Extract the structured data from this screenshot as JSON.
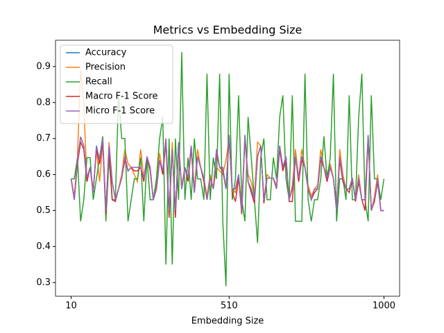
{
  "chart_data": {
    "type": "line",
    "title": "Metrics vs Embedding Size",
    "xlabel": "Embedding Size",
    "x": [
      10,
      20,
      30,
      40,
      50,
      60,
      70,
      80,
      90,
      100,
      110,
      120,
      130,
      140,
      150,
      160,
      170,
      180,
      190,
      200,
      210,
      220,
      230,
      240,
      250,
      260,
      270,
      280,
      290,
      300,
      310,
      320,
      330,
      340,
      350,
      360,
      370,
      380,
      390,
      400,
      410,
      420,
      430,
      440,
      450,
      460,
      470,
      480,
      490,
      500,
      510,
      520,
      530,
      540,
      550,
      560,
      570,
      580,
      590,
      600,
      610,
      620,
      630,
      640,
      650,
      660,
      670,
      680,
      690,
      700,
      710,
      720,
      730,
      740,
      750,
      760,
      770,
      780,
      790,
      800,
      810,
      820,
      830,
      840,
      850,
      860,
      870,
      880,
      890,
      900,
      910,
      920,
      930,
      940,
      950,
      960,
      970,
      980,
      990,
      1000
    ],
    "series": [
      {
        "name": "Accuracy",
        "color": "#1f77b4",
        "values": [
          0.588,
          0.53,
          0.64,
          0.705,
          0.68,
          0.59,
          0.62,
          0.55,
          0.68,
          0.64,
          0.7,
          0.5,
          0.68,
          0.58,
          0.53,
          0.56,
          0.59,
          0.65,
          0.61,
          0.62,
          0.62,
          0.62,
          0.62,
          0.59,
          0.65,
          0.62,
          0.53,
          0.56,
          0.64,
          0.61,
          0.7,
          0.5,
          0.67,
          0.5,
          0.69,
          0.56,
          0.62,
          0.59,
          0.68,
          0.55,
          0.65,
          0.62,
          0.59,
          0.53,
          0.59,
          0.56,
          0.67,
          0.62,
          0.62,
          0.56,
          0.71,
          0.56,
          0.56,
          0.6,
          0.5,
          0.71,
          0.58,
          0.56,
          0.53,
          0.65,
          0.68,
          0.53,
          0.59,
          0.59,
          0.59,
          0.56,
          0.68,
          0.62,
          0.65,
          0.53,
          0.56,
          0.65,
          0.59,
          0.65,
          0.62,
          0.56,
          0.53,
          0.56,
          0.56,
          0.65,
          0.62,
          0.59,
          0.62,
          0.59,
          0.5,
          0.65,
          0.59,
          0.56,
          0.56,
          0.59,
          0.53,
          0.59,
          0.53,
          0.53,
          0.71,
          0.5,
          0.53,
          0.59,
          0.5,
          0.5
        ]
      },
      {
        "name": "Precision",
        "color": "#ff7f0e",
        "values": [
          0.588,
          0.54,
          0.65,
          0.89,
          0.8,
          0.58,
          0.62,
          0.56,
          0.67,
          0.58,
          0.69,
          0.5,
          0.69,
          0.58,
          0.53,
          0.56,
          0.6,
          0.67,
          0.63,
          0.62,
          0.6,
          0.58,
          0.67,
          0.59,
          0.64,
          0.62,
          0.53,
          0.57,
          0.66,
          0.6,
          0.69,
          0.49,
          0.69,
          0.49,
          0.67,
          0.57,
          0.62,
          0.59,
          0.68,
          0.56,
          0.67,
          0.62,
          0.59,
          0.54,
          0.6,
          0.56,
          0.62,
          0.61,
          0.6,
          0.64,
          0.7,
          0.56,
          0.55,
          0.59,
          0.52,
          0.7,
          0.6,
          0.58,
          0.54,
          0.69,
          0.68,
          0.53,
          0.6,
          0.59,
          0.59,
          0.57,
          0.68,
          0.61,
          0.64,
          0.53,
          0.57,
          0.67,
          0.59,
          0.67,
          0.62,
          0.57,
          0.54,
          0.56,
          0.57,
          0.67,
          0.62,
          0.6,
          0.63,
          0.59,
          0.5,
          0.67,
          0.6,
          0.56,
          0.56,
          0.59,
          0.53,
          0.6,
          0.53,
          0.53,
          0.7,
          0.5,
          0.54,
          0.6,
          0.5,
          0.5
        ]
      },
      {
        "name": "Recall",
        "color": "#2ca02c",
        "values": [
          0.588,
          0.588,
          0.647,
          0.47,
          0.53,
          0.647,
          0.647,
          0.53,
          0.588,
          0.647,
          0.706,
          0.47,
          0.647,
          0.53,
          0.53,
          0.82,
          0.7,
          0.7,
          0.47,
          0.53,
          0.588,
          0.588,
          0.647,
          0.47,
          0.647,
          0.53,
          0.53,
          0.588,
          0.7,
          0.76,
          0.35,
          0.7,
          0.35,
          0.7,
          0.53,
          0.94,
          0.53,
          0.647,
          0.53,
          0.7,
          0.588,
          0.588,
          0.53,
          0.88,
          0.53,
          0.647,
          0.588,
          0.88,
          0.47,
          0.29,
          0.88,
          0.53,
          0.588,
          0.82,
          0.53,
          0.47,
          0.76,
          0.647,
          0.53,
          0.41,
          0.647,
          0.7,
          0.53,
          0.53,
          0.647,
          0.588,
          0.76,
          0.82,
          0.588,
          0.53,
          0.82,
          0.47,
          0.47,
          0.47,
          0.88,
          0.53,
          0.47,
          0.53,
          0.53,
          0.588,
          0.706,
          0.588,
          0.647,
          0.88,
          0.47,
          0.588,
          0.588,
          0.53,
          0.82,
          0.53,
          0.53,
          0.76,
          0.88,
          0.53,
          0.47,
          0.82,
          0.588,
          0.588,
          0.53,
          0.588
        ]
      },
      {
        "name": "Macro F-1 Score",
        "color": "#d62728",
        "values": [
          0.588,
          0.53,
          0.63,
          0.69,
          0.67,
          0.58,
          0.62,
          0.55,
          0.67,
          0.63,
          0.69,
          0.49,
          0.67,
          0.53,
          0.525,
          0.56,
          0.59,
          0.64,
          0.61,
          0.62,
          0.61,
          0.61,
          0.62,
          0.58,
          0.65,
          0.61,
          0.53,
          0.56,
          0.64,
          0.6,
          0.69,
          0.48,
          0.67,
          0.48,
          0.68,
          0.56,
          0.62,
          0.58,
          0.67,
          0.55,
          0.65,
          0.62,
          0.58,
          0.53,
          0.59,
          0.56,
          0.66,
          0.62,
          0.61,
          0.56,
          0.7,
          0.55,
          0.525,
          0.59,
          0.49,
          0.7,
          0.58,
          0.55,
          0.52,
          0.65,
          0.68,
          0.52,
          0.59,
          0.59,
          0.59,
          0.56,
          0.67,
          0.61,
          0.64,
          0.525,
          0.525,
          0.65,
          0.58,
          0.64,
          0.62,
          0.56,
          0.53,
          0.55,
          0.56,
          0.64,
          0.62,
          0.58,
          0.62,
          0.59,
          0.5,
          0.64,
          0.58,
          0.56,
          0.55,
          0.59,
          0.525,
          0.58,
          0.53,
          0.5,
          0.7,
          0.5,
          0.525,
          0.58,
          0.5,
          0.5
        ]
      },
      {
        "name": "Micro F-1 Score",
        "color": "#9467bd",
        "values": [
          0.588,
          0.53,
          0.64,
          0.705,
          0.68,
          0.59,
          0.62,
          0.55,
          0.68,
          0.64,
          0.7,
          0.5,
          0.68,
          0.58,
          0.53,
          0.56,
          0.59,
          0.65,
          0.61,
          0.62,
          0.62,
          0.62,
          0.62,
          0.59,
          0.65,
          0.62,
          0.53,
          0.56,
          0.64,
          0.61,
          0.7,
          0.5,
          0.67,
          0.5,
          0.69,
          0.56,
          0.62,
          0.59,
          0.68,
          0.55,
          0.65,
          0.62,
          0.59,
          0.53,
          0.59,
          0.56,
          0.67,
          0.62,
          0.62,
          0.56,
          0.71,
          0.56,
          0.56,
          0.6,
          0.5,
          0.71,
          0.58,
          0.56,
          0.53,
          0.65,
          0.68,
          0.53,
          0.59,
          0.59,
          0.59,
          0.56,
          0.68,
          0.62,
          0.65,
          0.53,
          0.56,
          0.65,
          0.59,
          0.65,
          0.62,
          0.56,
          0.53,
          0.56,
          0.56,
          0.65,
          0.62,
          0.59,
          0.62,
          0.59,
          0.5,
          0.65,
          0.59,
          0.56,
          0.56,
          0.59,
          0.53,
          0.59,
          0.53,
          0.53,
          0.71,
          0.5,
          0.53,
          0.59,
          0.5,
          0.5
        ]
      }
    ],
    "xlim": [
      -39.5,
      1049.5
    ],
    "xticks": [
      10,
      510,
      1000
    ],
    "ylim": [
      0.262,
      0.973
    ],
    "yticks": [
      0.3,
      0.4,
      0.5,
      0.6,
      0.7,
      0.8,
      0.9
    ],
    "legend": "upper left"
  }
}
